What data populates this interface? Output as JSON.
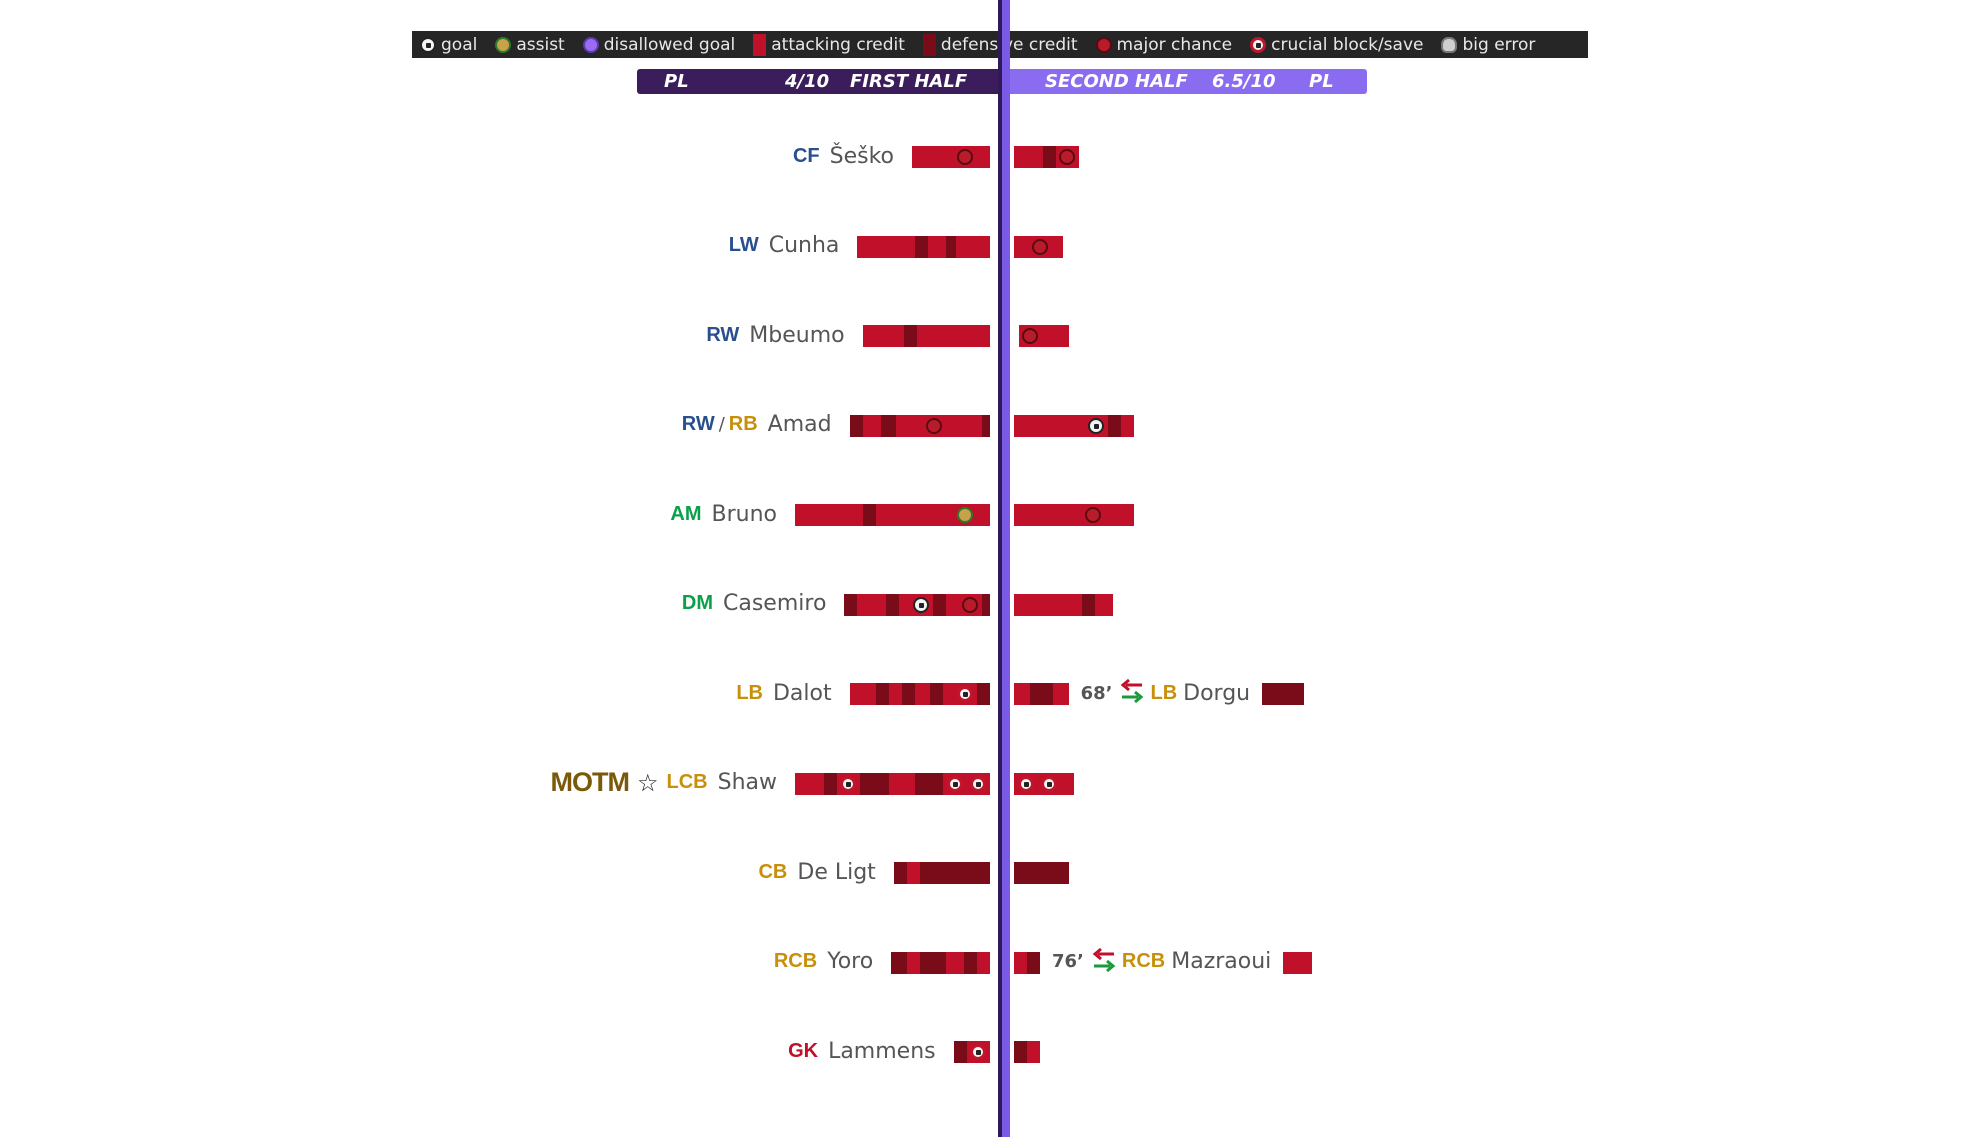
{
  "legend": [
    {
      "label": "goal",
      "icon": "goal-icon",
      "kind": "goal"
    },
    {
      "label": "assist",
      "icon": "assist-icon",
      "kind": "assist"
    },
    {
      "label": "disallowed goal",
      "icon": "disallowed-goal-icon",
      "kind": "disallowed"
    },
    {
      "label": "attacking credit",
      "icon": "attacking-credit-swatch",
      "kind": "attacking"
    },
    {
      "label": "defensive credit",
      "icon": "defensive-credit-swatch",
      "kind": "defensive"
    },
    {
      "label": "major chance",
      "icon": "major-chance-icon",
      "kind": "chance"
    },
    {
      "label": "crucial block/save",
      "icon": "crucial-block-icon",
      "kind": "block"
    },
    {
      "label": "big error",
      "icon": "skull-icon",
      "kind": "error"
    }
  ],
  "first_half": {
    "competition": "PL",
    "rating": "4/10",
    "label": "FIRST HALF"
  },
  "second_half": {
    "competition": "PL",
    "rating": "6.5/10",
    "label": "SECOND HALF"
  },
  "colors": {
    "attacking": "#c0102a",
    "defensive": "#7a0c1a",
    "pos_attack": "#2a4f8f",
    "pos_mid": "#0aa04a",
    "pos_def": "#c8900a",
    "pos_gk": "#c0102a",
    "first_half_bar": "#3a1d5a",
    "second_half_bar": "#8a6cf0"
  },
  "motm_label": "MOTM",
  "chart_data": {
    "type": "bar",
    "series_kinds": [
      "attacking credit",
      "defensive credit"
    ],
    "players": [
      {
        "pos": [
          "CF"
        ],
        "pos_group": [
          "att"
        ],
        "name": "Šeško",
        "first": [
          [
            "a",
            1.6
          ],
          [
            "a",
            0.9,
            "chance"
          ],
          [
            "a",
            0.5
          ]
        ],
        "second": [
          [
            "a",
            1.1
          ],
          [
            "d",
            0.5
          ],
          [
            "a",
            0.9,
            "chance"
          ]
        ]
      },
      {
        "pos": [
          "LW"
        ],
        "pos_group": [
          "att"
        ],
        "name": "Cunha",
        "first": [
          [
            "a",
            2.2
          ],
          [
            "d",
            0.5
          ],
          [
            "a",
            0.7
          ],
          [
            "d",
            0.4
          ],
          [
            "a",
            1.3
          ]
        ],
        "second": [
          [
            "a",
            0.6
          ],
          [
            "a",
            0.8,
            "chance"
          ],
          [
            "a",
            0.5
          ]
        ]
      },
      {
        "pos": [
          "RW"
        ],
        "pos_group": [
          "att"
        ],
        "name": "Mbeumo",
        "first": [
          [
            "a",
            1.6
          ],
          [
            "d",
            0.5
          ],
          [
            "a",
            2.8
          ]
        ],
        "second": [
          [
            "x",
            0.2
          ],
          [
            "a",
            0.8,
            "chance"
          ],
          [
            "a",
            1.1
          ]
        ]
      },
      {
        "pos": [
          "RW",
          "RB"
        ],
        "pos_group": [
          "att",
          "def"
        ],
        "name": "Amad",
        "first": [
          [
            "d",
            0.5
          ],
          [
            "a",
            0.7
          ],
          [
            "d",
            0.6
          ],
          [
            "a",
            1.0
          ],
          [
            "a",
            0.9,
            "chance"
          ],
          [
            "a",
            1.4
          ],
          [
            "d",
            0.3
          ]
        ],
        "second": [
          [
            "a",
            2.7
          ],
          [
            "a",
            0.9,
            "goal"
          ],
          [
            "d",
            0.5
          ],
          [
            "a",
            0.5
          ]
        ]
      },
      {
        "pos": [
          "AM"
        ],
        "pos_group": [
          "mid"
        ],
        "name": "Bruno",
        "first": [
          [
            "a",
            2.6
          ],
          [
            "d",
            0.5
          ],
          [
            "a",
            3.0
          ],
          [
            "a",
            0.9,
            "assist"
          ],
          [
            "a",
            0.5
          ]
        ],
        "second": [
          [
            "a",
            2.6
          ],
          [
            "a",
            0.9,
            "chance"
          ],
          [
            "a",
            1.1
          ]
        ]
      },
      {
        "pos": [
          "DM"
        ],
        "pos_group": [
          "mid"
        ],
        "name": "Casemiro",
        "first": [
          [
            "d",
            0.5
          ],
          [
            "a",
            1.1
          ],
          [
            "d",
            0.5
          ],
          [
            "a",
            0.4
          ],
          [
            "a",
            0.9,
            "goal"
          ],
          [
            "d",
            0.5
          ],
          [
            "a",
            0.5
          ],
          [
            "a",
            0.9,
            "chance"
          ],
          [
            "d",
            0.3
          ]
        ],
        "second": [
          [
            "a",
            2.6
          ],
          [
            "d",
            0.5
          ],
          [
            "a",
            0.7
          ]
        ]
      },
      {
        "pos": [
          "LB"
        ],
        "pos_group": [
          "def"
        ],
        "name": "Dalot",
        "first": [
          [
            "a",
            1.0
          ],
          [
            "d",
            0.5
          ],
          [
            "a",
            0.5
          ],
          [
            "d",
            0.5
          ],
          [
            "a",
            0.6
          ],
          [
            "d",
            0.5
          ],
          [
            "a",
            0.4
          ],
          [
            "a",
            0.9,
            "block"
          ],
          [
            "d",
            0.5
          ]
        ],
        "second": [
          [
            "a",
            0.6
          ],
          [
            "d",
            0.9
          ],
          [
            "a",
            0.6
          ]
        ],
        "sub": {
          "minute": "68’",
          "pos": "LB",
          "pos_group": "def",
          "name": "Dorgu",
          "bars": [
            [
              "d",
              1.6
            ]
          ]
        }
      },
      {
        "pos": [
          "LCB"
        ],
        "pos_group": [
          "def"
        ],
        "name": "Shaw",
        "motm": true,
        "first": [
          [
            "a",
            1.1
          ],
          [
            "d",
            0.5
          ],
          [
            "a",
            0.9,
            "block"
          ],
          [
            "d",
            1.1
          ],
          [
            "a",
            1.0
          ],
          [
            "d",
            1.1
          ],
          [
            "a",
            0.9,
            "block"
          ],
          [
            "a",
            0.9,
            "block"
          ]
        ],
        "second": [
          [
            "a",
            0.9,
            "block"
          ],
          [
            "a",
            0.9,
            "block"
          ],
          [
            "a",
            0.5
          ]
        ]
      },
      {
        "pos": [
          "CB"
        ],
        "pos_group": [
          "def"
        ],
        "name": "De Ligt",
        "first": [
          [
            "d",
            0.5
          ],
          [
            "a",
            0.5
          ],
          [
            "d",
            2.7
          ]
        ],
        "second": [
          [
            "d",
            2.1
          ]
        ]
      },
      {
        "pos": [
          "RCB"
        ],
        "pos_group": [
          "def"
        ],
        "name": "Yoro",
        "first": [
          [
            "d",
            0.6
          ],
          [
            "a",
            0.5
          ],
          [
            "d",
            1.0
          ],
          [
            "a",
            0.7
          ],
          [
            "d",
            0.5
          ],
          [
            "a",
            0.5
          ]
        ],
        "second": [
          [
            "a",
            0.5
          ],
          [
            "d",
            0.5
          ]
        ],
        "sub": {
          "minute": "76’",
          "pos": "RCB",
          "pos_group": "def",
          "name": "Mazraoui",
          "bars": [
            [
              "a",
              1.1
            ]
          ]
        }
      },
      {
        "pos": [
          "GK"
        ],
        "pos_group": [
          "gk"
        ],
        "name": "Lammens",
        "first": [
          [
            "d",
            0.5
          ],
          [
            "a",
            0.9,
            "block"
          ]
        ],
        "second": [
          [
            "d",
            0.5
          ],
          [
            "a",
            0.5
          ]
        ]
      }
    ]
  }
}
